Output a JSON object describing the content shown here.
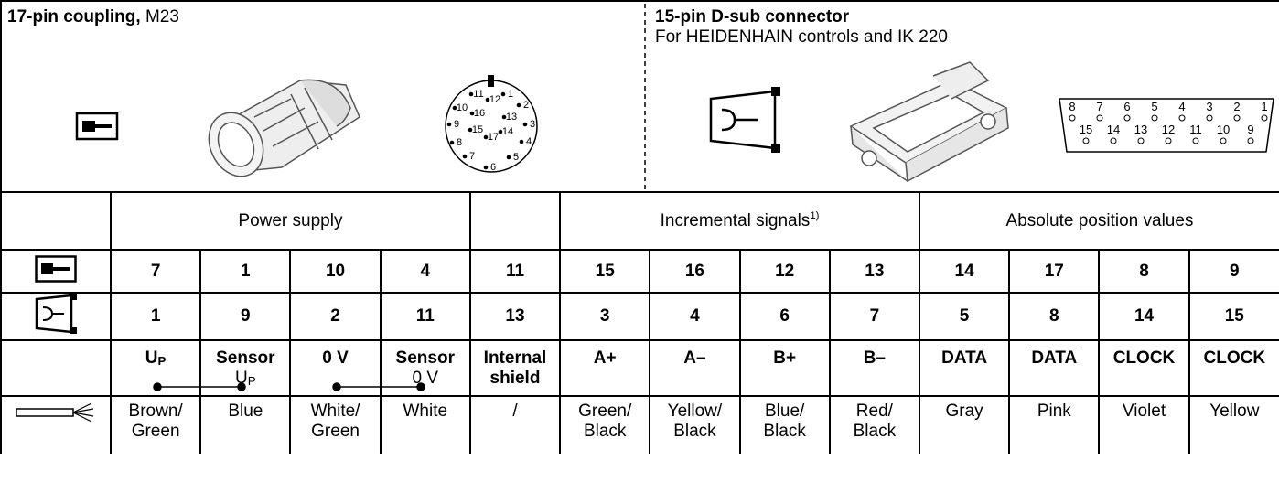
{
  "header": {
    "left": {
      "title_bold": "17-pin coupling,",
      "title_rest": "M23",
      "pins": [
        "1",
        "2",
        "3",
        "4",
        "5",
        "6",
        "7",
        "8",
        "9",
        "10",
        "11",
        "12",
        "13",
        "14",
        "15",
        "16",
        "17"
      ]
    },
    "right": {
      "title": "15-pin D-sub connector",
      "subtitle": "For HEIDENHAIN controls and IK 220",
      "pins": [
        "1",
        "2",
        "3",
        "4",
        "5",
        "6",
        "7",
        "8",
        "9",
        "10",
        "11",
        "12",
        "13",
        "14",
        "15"
      ]
    }
  },
  "table": {
    "groups": [
      "Power supply",
      "Incremental signals",
      "Absolute position values"
    ],
    "footnote": "1)",
    "coupling_pins": [
      7,
      1,
      10,
      4,
      11,
      15,
      16,
      12,
      13,
      14,
      17,
      8,
      9
    ],
    "dsub_pins": [
      1,
      9,
      2,
      11,
      13,
      3,
      4,
      6,
      7,
      5,
      8,
      14,
      15
    ],
    "signals": [
      {
        "text": "U",
        "sub": "P"
      },
      {
        "text": "Sensor",
        "note": "U",
        "note_sub": "P"
      },
      {
        "text": "0 V"
      },
      {
        "text": "Sensor",
        "note": "0 V"
      },
      {
        "text": "Internal\nshield"
      },
      {
        "text": "A+"
      },
      {
        "text": "A–"
      },
      {
        "text": "B+"
      },
      {
        "text": "B–"
      },
      {
        "text": "DATA"
      },
      {
        "text": "DATA",
        "inverted": true
      },
      {
        "text": "CLOCK"
      },
      {
        "text": "CLOCK",
        "inverted": true
      }
    ],
    "wires": [
      "Brown/\nGreen",
      "Blue",
      "White/\nGreen",
      "White",
      "/",
      "Green/\nBlack",
      "Yellow/\nBlack",
      "Blue/\nBlack",
      "Red/\nBlack",
      "Gray",
      "Pink",
      "Violet",
      "Yellow"
    ]
  }
}
